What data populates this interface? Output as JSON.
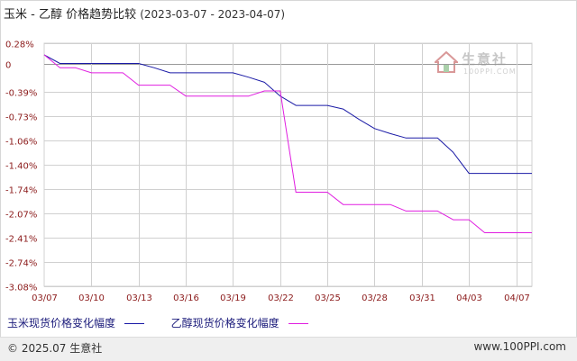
{
  "title": {
    "main": "玉米 - 乙醇 价格趋势比较",
    "range": "(2023-03-07 - 2023-04-07)"
  },
  "watermark": {
    "name": "生意社",
    "url": "100PPI.COM"
  },
  "footer": {
    "copyright": "© 2025.07 生意社",
    "site": "www.100PPI.com"
  },
  "colors": {
    "corn": "#1a1aa6",
    "ethanol": "#e01ee0",
    "grid": "#d0d0d0",
    "zero_line": "#999999",
    "axis_text": "#8b1a1a"
  },
  "chart_data": {
    "type": "line",
    "title": "玉米 - 乙醇 价格趋势比较",
    "ylim": [
      -3.08,
      0.28
    ],
    "yticks": [
      "0.28%",
      "0",
      "-0.39%",
      "-0.73%",
      "-1.06%",
      "-1.40%",
      "-1.74%",
      "-2.07%",
      "-2.41%",
      "-2.74%",
      "-3.08%"
    ],
    "ytick_values": [
      0.28,
      0,
      -0.39,
      -0.73,
      -1.06,
      -1.4,
      -1.74,
      -2.07,
      -2.41,
      -2.74,
      -3.08
    ],
    "xlim": [
      0,
      31
    ],
    "xticks": [
      "03/07",
      "03/10",
      "03/13",
      "03/16",
      "03/19",
      "03/22",
      "03/25",
      "03/28",
      "03/31",
      "04/03",
      "04/07"
    ],
    "xtick_positions": [
      0,
      3,
      6,
      9,
      12,
      15,
      18,
      21,
      24,
      27,
      30
    ],
    "grid": true,
    "legend_position": "bottom",
    "series": [
      {
        "name": "玉米现货价格变化幅度",
        "key": "corn",
        "points": [
          [
            0,
            0.12
          ],
          [
            1,
            0.0
          ],
          [
            2,
            0.0
          ],
          [
            3,
            0.0
          ],
          [
            4,
            0.0
          ],
          [
            5,
            0.0
          ],
          [
            6,
            0.0
          ],
          [
            7,
            -0.06
          ],
          [
            8,
            -0.13
          ],
          [
            9,
            -0.13
          ],
          [
            10,
            -0.13
          ],
          [
            11,
            -0.13
          ],
          [
            12,
            -0.13
          ],
          [
            13,
            -0.19
          ],
          [
            14,
            -0.26
          ],
          [
            15,
            -0.45
          ],
          [
            16,
            -0.58
          ],
          [
            17,
            -0.58
          ],
          [
            18,
            -0.58
          ],
          [
            19,
            -0.63
          ],
          [
            20,
            -0.77
          ],
          [
            21,
            -0.9
          ],
          [
            22,
            -0.97
          ],
          [
            23,
            -1.03
          ],
          [
            24,
            -1.03
          ],
          [
            25,
            -1.03
          ],
          [
            26,
            -1.23
          ],
          [
            27,
            -1.52
          ],
          [
            28,
            -1.52
          ],
          [
            29,
            -1.52
          ],
          [
            30,
            -1.52
          ],
          [
            31,
            -1.52
          ]
        ]
      },
      {
        "name": "乙醇现货价格变化幅度",
        "key": "ethanol",
        "points": [
          [
            0,
            0.12
          ],
          [
            1,
            -0.06
          ],
          [
            2,
            -0.06
          ],
          [
            3,
            -0.13
          ],
          [
            4,
            -0.13
          ],
          [
            5,
            -0.13
          ],
          [
            6,
            -0.3
          ],
          [
            7,
            -0.3
          ],
          [
            8,
            -0.3
          ],
          [
            9,
            -0.45
          ],
          [
            10,
            -0.45
          ],
          [
            11,
            -0.45
          ],
          [
            12,
            -0.45
          ],
          [
            13,
            -0.45
          ],
          [
            14,
            -0.38
          ],
          [
            15,
            -0.38
          ],
          [
            16,
            -1.78
          ],
          [
            17,
            -1.78
          ],
          [
            18,
            -1.78
          ],
          [
            19,
            -1.95
          ],
          [
            20,
            -1.95
          ],
          [
            21,
            -1.95
          ],
          [
            22,
            -1.95
          ],
          [
            23,
            -2.04
          ],
          [
            24,
            -2.04
          ],
          [
            25,
            -2.04
          ],
          [
            26,
            -2.16
          ],
          [
            27,
            -2.16
          ],
          [
            28,
            -2.34
          ],
          [
            29,
            -2.34
          ],
          [
            30,
            -2.34
          ],
          [
            31,
            -2.34
          ]
        ]
      }
    ]
  }
}
